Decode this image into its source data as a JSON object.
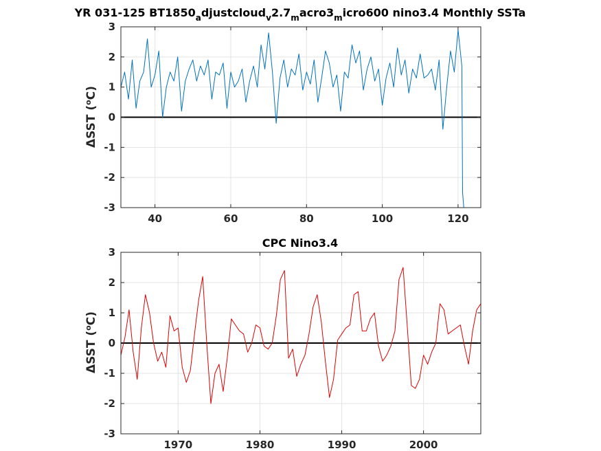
{
  "chart_data": [
    {
      "type": "line",
      "title_parts": [
        "YR 031-125 BT1850",
        "a",
        "djustcloud",
        "v",
        "2.7",
        "m",
        "acro3",
        "m",
        "icro600 nino3.4 Monthly SSTa"
      ],
      "ylabel_delta": "Δ",
      "ylabel_rest": "SST (",
      "ylabel_sup": "o",
      "ylabel_end": "C)",
      "xlim": [
        31,
        126
      ],
      "ylim": [
        -3,
        3
      ],
      "xticks": [
        40,
        60,
        80,
        100,
        120
      ],
      "yticks": [
        3,
        2,
        1,
        0,
        -1,
        -2,
        -3
      ],
      "grid": true,
      "color": "#0072bd",
      "series": [
        {
          "x": [
            31,
            32,
            33,
            34,
            35,
            36,
            37,
            38,
            39,
            40,
            41,
            42,
            43,
            44,
            45,
            46,
            47,
            48,
            49,
            50,
            51,
            52,
            53,
            54,
            55,
            56,
            57,
            58,
            59,
            60,
            61,
            62,
            63,
            64,
            65,
            66,
            67,
            68,
            69,
            70,
            71,
            72,
            73,
            74,
            75,
            76,
            77,
            78,
            79,
            80,
            81,
            82,
            83,
            84,
            85,
            86,
            87,
            88,
            89,
            90,
            91,
            92,
            93,
            94,
            95,
            96,
            97,
            98,
            99,
            100,
            101,
            102,
            103,
            104,
            105,
            106,
            107,
            108,
            109,
            110,
            111,
            112,
            113,
            114,
            115,
            116,
            117,
            118,
            119,
            120,
            121,
            121.2,
            121.5
          ],
          "y": [
            1.0,
            1.5,
            0.6,
            1.9,
            0.3,
            1.2,
            1.5,
            2.6,
            1.0,
            1.4,
            2.2,
            0.0,
            1.0,
            1.5,
            1.2,
            2.0,
            0.2,
            1.2,
            1.6,
            1.9,
            1.2,
            1.7,
            1.4,
            1.9,
            0.6,
            1.5,
            1.4,
            1.8,
            0.3,
            1.5,
            1.0,
            1.2,
            1.6,
            0.5,
            1.2,
            1.7,
            1.0,
            2.4,
            1.6,
            2.8,
            1.5,
            -0.2,
            1.3,
            1.9,
            1.0,
            1.6,
            1.4,
            2.1,
            0.9,
            1.5,
            1.1,
            1.9,
            0.5,
            1.3,
            2.2,
            1.8,
            1.0,
            1.4,
            0.2,
            1.5,
            1.3,
            2.4,
            1.8,
            2.2,
            0.9,
            1.6,
            2.0,
            1.2,
            1.6,
            0.4,
            1.3,
            1.8,
            1.0,
            2.3,
            1.4,
            1.9,
            0.8,
            1.6,
            1.3,
            2.1,
            1.3,
            1.4,
            1.6,
            0.9,
            1.9,
            -0.4,
            1.0,
            2.2,
            1.5,
            2.9,
            1.7,
            -2.5,
            -3.0
          ]
        }
      ]
    },
    {
      "type": "line",
      "title": "CPC Nino3.4",
      "ylabel_delta": "Δ",
      "ylabel_rest": "SST (",
      "ylabel_sup": "o",
      "ylabel_end": "C)",
      "xlim": [
        1963,
        2007
      ],
      "ylim": [
        -3,
        3
      ],
      "xticks": [
        1970,
        1980,
        1990,
        2000
      ],
      "yticks": [
        3,
        2,
        1,
        0,
        -1,
        -2,
        -3
      ],
      "grid": true,
      "color": "#dd0000",
      "series": [
        {
          "x": [
            1963,
            1963.5,
            1964,
            1964.5,
            1965,
            1965.5,
            1966,
            1966.5,
            1967,
            1967.5,
            1968,
            1968.5,
            1969,
            1969.5,
            1970,
            1970.5,
            1971,
            1971.5,
            1972,
            1972.5,
            1973,
            1973.5,
            1974,
            1974.5,
            1975,
            1975.5,
            1976,
            1976.5,
            1977,
            1977.5,
            1978,
            1978.5,
            1979,
            1979.5,
            1980,
            1980.5,
            1981,
            1981.5,
            1982,
            1982.5,
            1983,
            1983.5,
            1984,
            1984.5,
            1985,
            1985.5,
            1986,
            1986.5,
            1987,
            1987.5,
            1988,
            1988.5,
            1989,
            1989.5,
            1990,
            1990.5,
            1991,
            1991.5,
            1992,
            1992.5,
            1993,
            1993.5,
            1994,
            1994.5,
            1995,
            1995.5,
            1996,
            1996.5,
            1997,
            1997.5,
            1998,
            1998.5,
            1999,
            1999.5,
            2000,
            2000.5,
            2001,
            2001.5,
            2002,
            2002.5,
            2003,
            2003.5,
            2004,
            2004.5,
            2005,
            2005.5,
            2006,
            2006.5,
            2007
          ],
          "y": [
            -0.4,
            0.2,
            1.1,
            -0.3,
            -1.2,
            0.5,
            1.6,
            1.0,
            0.0,
            -0.6,
            -0.3,
            -0.8,
            0.9,
            0.4,
            0.5,
            -0.8,
            -1.3,
            -0.9,
            0.3,
            1.4,
            2.2,
            0.0,
            -2.0,
            -1.0,
            -0.7,
            -1.6,
            -0.5,
            0.8,
            0.6,
            0.4,
            0.3,
            -0.3,
            0.0,
            0.6,
            0.5,
            -0.1,
            -0.2,
            0.0,
            0.9,
            2.1,
            2.4,
            -0.5,
            -0.2,
            -1.1,
            -0.7,
            -0.4,
            0.3,
            1.2,
            1.6,
            0.7,
            -0.6,
            -1.8,
            -1.2,
            0.1,
            0.3,
            0.5,
            0.6,
            1.6,
            1.7,
            0.4,
            0.4,
            0.8,
            1.0,
            -0.1,
            -0.6,
            -0.4,
            -0.1,
            0.4,
            2.1,
            2.5,
            0.6,
            -1.4,
            -1.5,
            -1.2,
            -0.4,
            -0.7,
            -0.3,
            0.0,
            1.3,
            1.1,
            0.3,
            0.4,
            0.5,
            0.6,
            -0.1,
            -0.7,
            0.4,
            1.1,
            1.3
          ]
        }
      ]
    }
  ]
}
